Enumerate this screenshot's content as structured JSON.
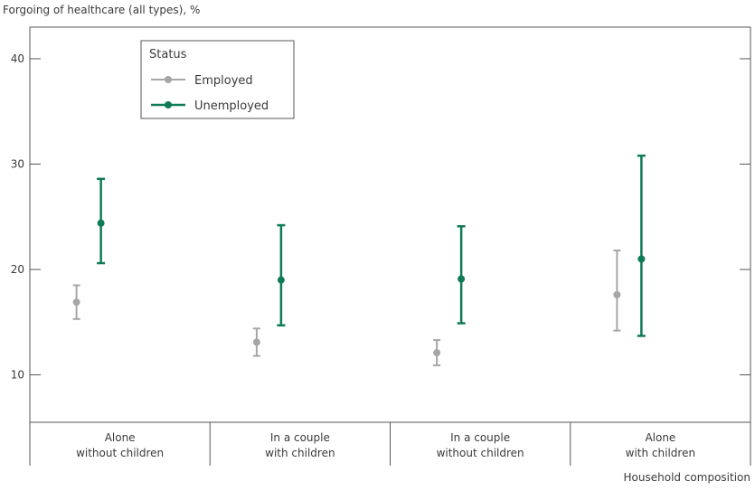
{
  "chart_data": {
    "type": "errorbar",
    "title": "",
    "ylabel": "Forgoing of healthcare (all types), %",
    "xlabel": "Household composition",
    "ylim": [
      5.5,
      43
    ],
    "yticks": [
      10,
      20,
      30,
      40
    ],
    "grid": false,
    "legend": {
      "title": "Status",
      "placement": "top-left"
    },
    "categories": [
      [
        "Alone",
        "without children"
      ],
      [
        "In a couple",
        "with children"
      ],
      [
        "In a couple",
        "without children"
      ],
      [
        "Alone",
        "with children"
      ]
    ],
    "series": [
      {
        "name": "Employed",
        "color": "#a6a6a6",
        "points": [
          {
            "value": 16.9,
            "low": 15.3,
            "high": 18.5
          },
          {
            "value": 13.1,
            "low": 11.8,
            "high": 14.4
          },
          {
            "value": 12.1,
            "low": 10.9,
            "high": 13.3
          },
          {
            "value": 17.6,
            "low": 14.2,
            "high": 21.8
          }
        ]
      },
      {
        "name": "Unemployed",
        "color": "#0f7a57",
        "points": [
          {
            "value": 24.4,
            "low": 20.6,
            "high": 28.6
          },
          {
            "value": 19.0,
            "low": 14.7,
            "high": 24.2
          },
          {
            "value": 19.1,
            "low": 14.9,
            "high": 24.1
          },
          {
            "value": 21.0,
            "low": 13.7,
            "high": 30.8
          }
        ]
      }
    ]
  }
}
